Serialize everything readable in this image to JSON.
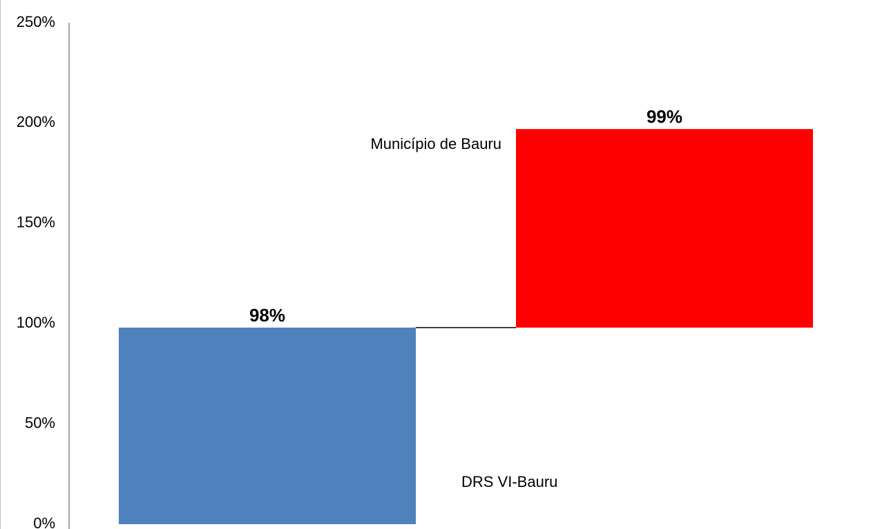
{
  "chart_data": {
    "type": "waterfall",
    "series": [
      {
        "name": "DRS VI-Bauru",
        "color": "#4f81bd",
        "values": [
          98
        ],
        "value_labels": [
          "98%"
        ]
      },
      {
        "name": "Município de Bauru",
        "color": "#ff0000",
        "values": [
          99
        ],
        "value_labels": [
          "99%"
        ]
      }
    ],
    "ylim": [
      0,
      250
    ],
    "yticks": [
      {
        "value": 0,
        "label": "0%"
      },
      {
        "value": 50,
        "label": "50%"
      },
      {
        "value": 100,
        "label": "100%"
      },
      {
        "value": 150,
        "label": "150%"
      },
      {
        "value": 200,
        "label": "200%"
      },
      {
        "value": 250,
        "label": "250%"
      }
    ],
    "grid": false
  }
}
